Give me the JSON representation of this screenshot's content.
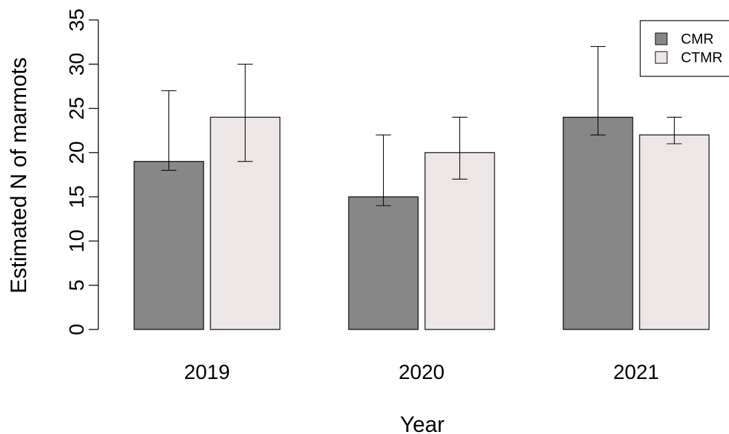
{
  "chart_data": {
    "type": "bar",
    "categories": [
      "2019",
      "2020",
      "2021"
    ],
    "series": [
      {
        "name": "CMR",
        "color": "#878787",
        "values": [
          19,
          15,
          24
        ],
        "error_low": [
          18,
          14,
          22
        ],
        "error_high": [
          27,
          22,
          32
        ]
      },
      {
        "name": "CTMR",
        "color": "#ECE7E6",
        "values": [
          24,
          20,
          22
        ],
        "error_low": [
          19,
          17,
          21
        ],
        "error_high": [
          30,
          24,
          24
        ]
      }
    ],
    "xlabel": "Year",
    "ylabel": "Estimated N of marmots",
    "ylim": [
      0,
      35
    ],
    "yticks": [
      0,
      5,
      10,
      15,
      20,
      25,
      30,
      35
    ],
    "grid": false,
    "legend": "top-right"
  }
}
